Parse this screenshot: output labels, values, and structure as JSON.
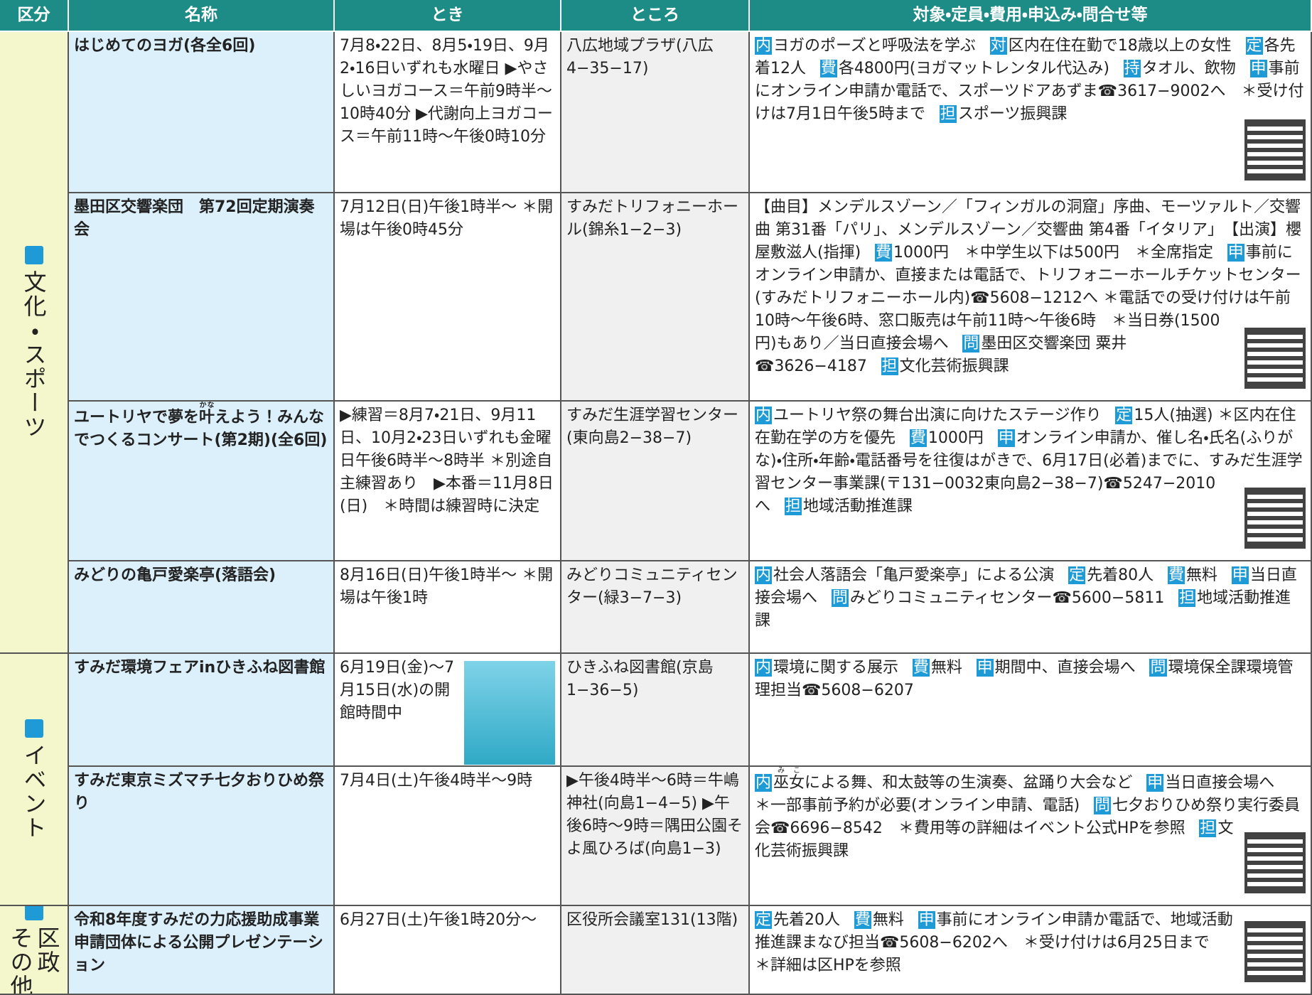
{
  "table": {
    "header": [
      "区分",
      "名称",
      "とき",
      "ところ",
      "対象・定員・費用・申込み・問合せ等"
    ],
    "sections": [
      {
        "label_lines": [
          "文化・スポーツ"
        ],
        "rows": [
          0,
          1,
          2,
          3
        ]
      },
      {
        "label_lines": [
          "イベント"
        ],
        "rows": [
          4,
          5
        ]
      },
      {
        "label_lines": [
          "区政",
          "その他"
        ],
        "rows": [
          6
        ]
      }
    ],
    "rows": [
      {
        "name": "はじめてのヨガ(各全6回)",
        "when": "7月8・22日、8月5・19日、9月2・16日いずれも水曜日 ▶やさしいヨガコース＝午前9時半〜10時40分 ▶代謝向上ヨガコース＝午前11時〜午後0時10分",
        "where": "八広地域プラザ(八広4−35−17)",
        "details": [
          {
            "badge": "内",
            "text": "ヨガのポーズと呼吸法を学ぶ"
          },
          {
            "badge": "対",
            "text": "区内在住在勤で18歳以上の女性"
          },
          {
            "badge": "定",
            "text": "各先着12人"
          },
          {
            "badge": "費",
            "text": "各4800円(ヨガマットレンタル代込み)"
          },
          {
            "badge": "持",
            "text": "タオル、飲物"
          },
          {
            "badge": "申",
            "text": "事前にオンライン申請か電話で、スポーツドアあずま☎3617−9002へ　＊受け付けは7月1日午後5時まで"
          },
          {
            "badge": "担",
            "text": "スポーツ振興課"
          }
        ]
      },
      {
        "name": "墨田区交響楽団　第72回定期演奏会",
        "when": "7月12日(日)午後1時半〜 ＊開場は午後0時45分",
        "where": "すみだトリフォニーホール(錦糸1−2−3)",
        "details": [
          {
            "text": "【曲目】メンデルスゾーン／「フィンガルの洞窟」序曲、モーツァルト／交響曲 第31番「パリ」、メンデルスゾーン／交響曲 第4番「イタリア」　【出演】櫻屋敷滋人(指揮)"
          },
          {
            "badge": "費",
            "text": "1000円　＊中学生以下は500円　＊全席指定"
          },
          {
            "badge": "申",
            "text": "事前にオンライン申請か、直接または電話で、トリフォニーホールチケットセンター(すみだトリフォニーホール内)☎5608−1212へ ＊電話での受け付けは午前10時〜午後6時、窓口販売は午前11時〜午後6時　＊当日券(1500円)もあり／当日直接会場へ"
          },
          {
            "badge": "問",
            "text": "墨田区交響楽団 粟井☎3626−4187"
          },
          {
            "badge": "担",
            "text": "文化芸術振興課"
          }
        ]
      },
      {
        "name": [
          {
            "text": "ユートリヤで夢を"
          },
          {
            "text": "叶",
            "ruby": "かな"
          },
          {
            "text": "えよう！みんなでつくるコンサート(第2期)(全6回)"
          }
        ],
        "when": "▶練習＝8月7・21日、9月11日、10月2・23日いずれも金曜日午後6時半〜8時半 ＊別途自主練習あり　▶本番＝11月8日(日)　＊時間は練習時に決定",
        "where": "すみだ生涯学習センター(東向島2−38−7)",
        "details": [
          {
            "badge": "内",
            "text": "ユートリヤ祭の舞台出演に向けたステージ作り"
          },
          {
            "badge": "定",
            "text": "15人(抽選) ＊区内在住在勤在学の方を優先"
          },
          {
            "badge": "費",
            "text": "1000円"
          },
          {
            "badge": "申",
            "text": "オンライン申請か、催し名・氏名(ふりがな)・住所・年齢・電話番号を往復はがきで、6月17日(必着)までに、すみだ生涯学習センター事業課(〒131−0032東向島2−38−7)☎5247−2010へ"
          },
          {
            "badge": "担",
            "text": "地域活動推進課"
          }
        ]
      },
      {
        "name": "みどりの亀戸愛楽亭(落語会)",
        "when": "8月16日(日)午後1時半〜 ＊開場は午後1時",
        "where": "みどりコミュニティセンター(緑3−7−3)",
        "details": [
          {
            "badge": "内",
            "text": "社会人落語会「亀戸愛楽亭」による公演"
          },
          {
            "badge": "定",
            "text": "先着80人"
          },
          {
            "badge": "費",
            "text": "無料"
          },
          {
            "badge": "申",
            "text": "当日直接会場へ"
          },
          {
            "badge": "問",
            "text": "みどりコミュニティセンター☎5600−5811"
          },
          {
            "badge": "担",
            "text": "地域活動推進課"
          }
        ]
      },
      {
        "name": "すみだ環境フェアinひきふね図書館",
        "when": "6月19日(金)〜7月15日(水)の開館時間中",
        "where": "ひきふね図書館(京島1−36−5)",
        "details": [
          {
            "badge": "内",
            "text": "環境に関する展示"
          },
          {
            "badge": "費",
            "text": "無料"
          },
          {
            "badge": "申",
            "text": "期間中、直接会場へ"
          },
          {
            "badge": "問",
            "text": "環境保全課環境管理担当☎5608−6207"
          }
        ]
      },
      {
        "name": "すみだ東京ミズマチ七夕おりひめ祭り",
        "when": "7月4日(土)午後4時半〜9時",
        "where": "▶午後4時半〜6時＝牛嶋神社(向島1−4−5) ▶午後6時〜9時＝隅田公園そよ風ひろば(向島1−3)",
        "details": [
          {
            "badge": "内",
            "text": [
              {
                "text": "巫女",
                "ruby": "みこ"
              },
              {
                "text": "による舞、和太鼓等の生演奏、盆踊り大会など"
              }
            ]
          },
          {
            "badge": "申",
            "text": "当日直接会場へ　＊一部事前予約が必要(オンライン申請、電話)"
          },
          {
            "badge": "問",
            "text": "七夕おりひめ祭り実行委員会☎6696−8542　＊費用等の詳細はイベント公式HPを参照"
          },
          {
            "badge": "担",
            "text": "文化芸術振興課"
          }
        ]
      },
      {
        "name": "令和8年度すみだの力応援助成事業申請団体による公開プレゼンテーション",
        "when": "6月27日(土)午後1時20分〜",
        "where": "区役所会議室131(13階)",
        "details": [
          {
            "badge": "定",
            "text": "先着20人"
          },
          {
            "badge": "費",
            "text": "無料"
          },
          {
            "badge": "申",
            "text": "事前にオンライン申請か電話で、地域活動推進課まなび担当☎5608−6202へ　＊受け付けは6月25日まで　＊詳細は区HPを参照"
          }
        ]
      }
    ]
  }
}
